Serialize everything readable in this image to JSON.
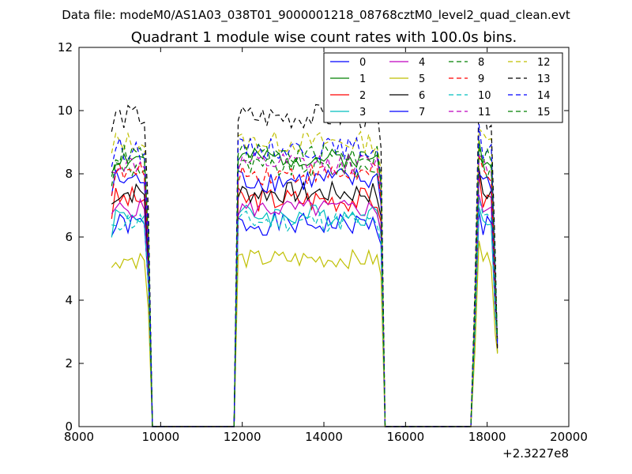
{
  "page_title": "Data file: modeM0/AS1A03_038T01_9000001218_08768cztM0_level2_quad_clean.evt",
  "chart_data": {
    "type": "line",
    "title": "Quadrant 1 module wise count rates with 100.0s bins.",
    "xlabel": "",
    "ylabel": "",
    "x_offset_label": "+2.3227e8",
    "xlim": [
      8000,
      20000
    ],
    "ylim": [
      0,
      12
    ],
    "x_ticks": [
      "8000",
      "10000",
      "12000",
      "14000",
      "16000",
      "18000",
      "20000"
    ],
    "y_ticks": [
      "0",
      "2",
      "4",
      "6",
      "8",
      "10",
      "12"
    ],
    "grid": false,
    "legend_position": "top-right",
    "series": [
      {
        "name": "0",
        "color": "#0000ff",
        "dash": "solid",
        "level": 6.4,
        "amp": 0.35,
        "seed": 1
      },
      {
        "name": "1",
        "color": "#008000",
        "dash": "solid",
        "level": 8.5,
        "amp": 0.3,
        "seed": 2
      },
      {
        "name": "2",
        "color": "#ff0000",
        "dash": "solid",
        "level": 7.2,
        "amp": 0.4,
        "seed": 3
      },
      {
        "name": "3",
        "color": "#00bfbf",
        "dash": "solid",
        "level": 6.7,
        "amp": 0.35,
        "seed": 4
      },
      {
        "name": "4",
        "color": "#bf00bf",
        "dash": "solid",
        "level": 6.9,
        "amp": 0.3,
        "seed": 5
      },
      {
        "name": "5",
        "color": "#bfbf00",
        "dash": "solid",
        "level": 5.3,
        "amp": 0.3,
        "seed": 6
      },
      {
        "name": "6",
        "color": "#000000",
        "dash": "solid",
        "level": 7.4,
        "amp": 0.35,
        "seed": 7
      },
      {
        "name": "7",
        "color": "#0000ff",
        "dash": "solid",
        "level": 7.8,
        "amp": 0.4,
        "seed": 8
      },
      {
        "name": "8",
        "color": "#008000",
        "dash": "dashed",
        "level": 8.2,
        "amp": 0.35,
        "seed": 9
      },
      {
        "name": "9",
        "color": "#ff0000",
        "dash": "dashed",
        "level": 8.0,
        "amp": 0.35,
        "seed": 10
      },
      {
        "name": "10",
        "color": "#00bfbf",
        "dash": "dashed",
        "level": 6.5,
        "amp": 0.35,
        "seed": 11
      },
      {
        "name": "11",
        "color": "#bf00bf",
        "dash": "dashed",
        "level": 8.3,
        "amp": 0.35,
        "seed": 12
      },
      {
        "name": "12",
        "color": "#bfbf00",
        "dash": "dashed",
        "level": 9.0,
        "amp": 0.35,
        "seed": 13
      },
      {
        "name": "13",
        "color": "#000000",
        "dash": "dashed",
        "level": 9.8,
        "amp": 0.4,
        "seed": 14
      },
      {
        "name": "14",
        "color": "#0000ff",
        "dash": "dashed",
        "level": 8.8,
        "amp": 0.35,
        "seed": 15
      },
      {
        "name": "15",
        "color": "#008000",
        "dash": "dashed",
        "level": 8.6,
        "amp": 0.35,
        "seed": 16
      }
    ],
    "segments": [
      {
        "x_start": 8800,
        "x_end": 9600,
        "zero_end": 9850
      },
      {
        "x_start": 11900,
        "x_end": 15300,
        "zero_start": 11800,
        "zero_end": 15600
      },
      {
        "x_start": 17800,
        "x_end": 18200,
        "zero_start": 17600
      }
    ]
  }
}
